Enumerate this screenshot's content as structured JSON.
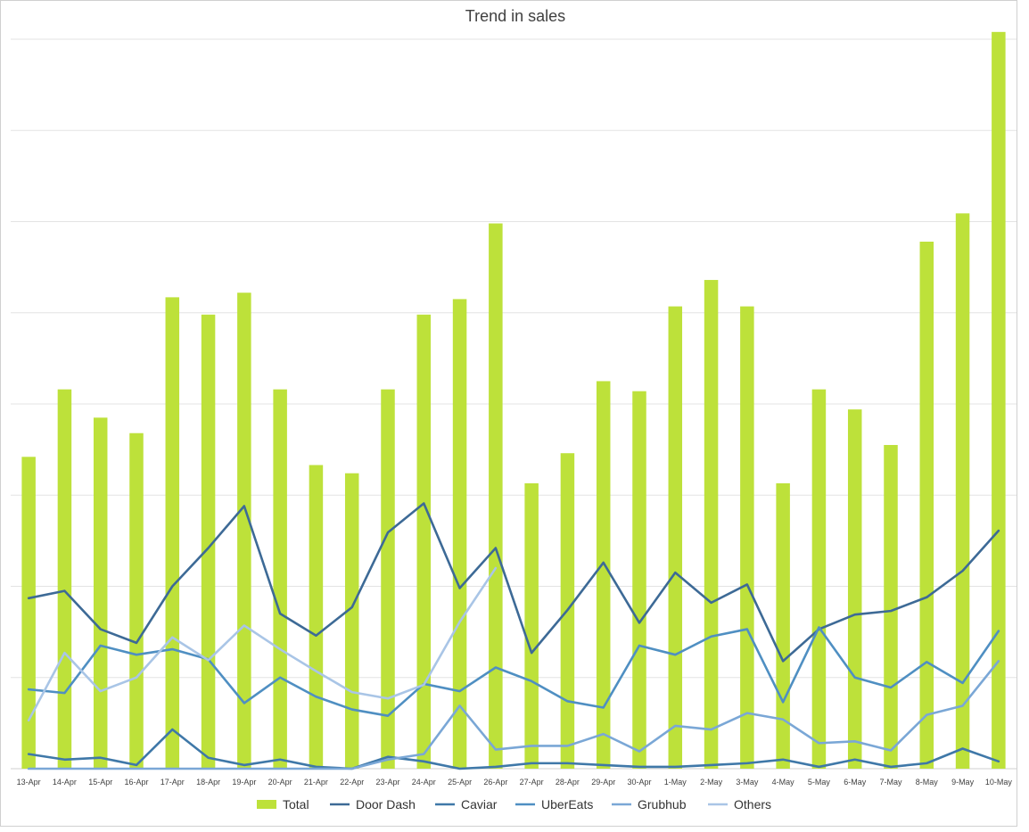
{
  "chart_data": {
    "type": "bar",
    "title": "Trend in sales",
    "xlabel": "",
    "ylabel": "",
    "ylim": [
      0,
      8
    ],
    "grid": true,
    "legend_position": "bottom",
    "categories": [
      "13-Apr",
      "14-Apr",
      "15-Apr",
      "16-Apr",
      "17-Apr",
      "18-Apr",
      "19-Apr",
      "20-Apr",
      "21-Apr",
      "22-Apr",
      "23-Apr",
      "24-Apr",
      "25-Apr",
      "26-Apr",
      "27-Apr",
      "28-Apr",
      "29-Apr",
      "30-Apr",
      "1-May",
      "2-May",
      "3-May",
      "4-May",
      "5-May",
      "6-May",
      "7-May",
      "8-May",
      "9-May",
      "10-May"
    ],
    "series": [
      {
        "name": "Total",
        "type": "bar",
        "color": "#bde13a",
        "values": [
          3.42,
          4.16,
          3.85,
          3.68,
          5.17,
          4.98,
          5.22,
          4.16,
          3.33,
          3.24,
          4.16,
          4.98,
          5.15,
          5.98,
          3.13,
          3.46,
          4.25,
          4.14,
          5.07,
          5.36,
          5.07,
          3.13,
          4.16,
          3.94,
          3.55,
          5.78,
          6.09,
          8.08
        ]
      },
      {
        "name": "Door Dash",
        "type": "line",
        "color": "#3d6a96",
        "values": [
          1.87,
          1.95,
          1.53,
          1.38,
          2.0,
          2.42,
          2.88,
          1.7,
          1.46,
          1.77,
          2.59,
          2.91,
          1.98,
          2.42,
          1.27,
          1.74,
          2.26,
          1.6,
          2.15,
          1.82,
          2.02,
          1.18,
          1.53,
          1.69,
          1.73,
          1.88,
          2.17,
          2.61
        ]
      },
      {
        "name": "Caviar",
        "type": "line",
        "color": "#3f78a8",
        "values": [
          0.16,
          0.1,
          0.12,
          0.04,
          0.43,
          0.12,
          0.04,
          0.1,
          0.02,
          0.0,
          0.13,
          0.08,
          0.0,
          0.02,
          0.06,
          0.06,
          0.04,
          0.02,
          0.02,
          0.04,
          0.06,
          0.1,
          0.02,
          0.1,
          0.02,
          0.06,
          0.22,
          0.08
        ]
      },
      {
        "name": "UberEats",
        "type": "line",
        "color": "#4f8fc2",
        "values": [
          0.87,
          0.83,
          1.35,
          1.25,
          1.31,
          1.2,
          0.72,
          1.0,
          0.79,
          0.65,
          0.58,
          0.93,
          0.85,
          1.11,
          0.96,
          0.74,
          0.67,
          1.35,
          1.25,
          1.45,
          1.53,
          0.73,
          1.55,
          1.0,
          0.89,
          1.17,
          0.94,
          1.51
        ]
      },
      {
        "name": "Grubhub",
        "type": "line",
        "color": "#7aa7d6",
        "values": [
          0.0,
          0.0,
          0.0,
          0.0,
          0.0,
          0.0,
          0.0,
          0.0,
          0.0,
          0.0,
          0.1,
          0.16,
          0.69,
          0.21,
          0.25,
          0.25,
          0.38,
          0.19,
          0.47,
          0.43,
          0.61,
          0.54,
          0.28,
          0.3,
          0.2,
          0.59,
          0.69,
          1.18
        ]
      },
      {
        "name": "Others",
        "type": "line",
        "color": "#a9c5e6",
        "values": [
          0.53,
          1.27,
          0.85,
          1.0,
          1.44,
          1.19,
          1.57,
          1.31,
          1.07,
          0.84,
          0.77,
          0.92,
          1.61,
          2.2,
          null,
          null,
          null,
          null,
          null,
          null,
          null,
          null,
          null,
          null,
          null,
          null,
          null,
          null
        ]
      }
    ]
  }
}
